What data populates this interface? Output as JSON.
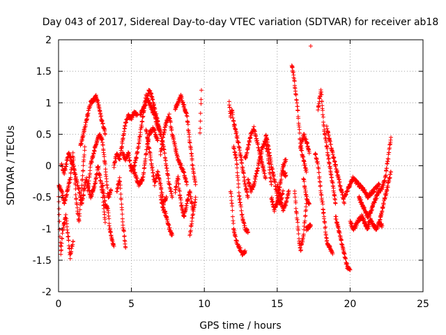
{
  "chart_data": {
    "type": "scatter",
    "title": "Day 043 of 2017, Sidereal Day-to-day VTEC variation (SDTVAR) for receiver ab18",
    "xlabel": "GPS time / hours",
    "ylabel": "SDTVAR / TECUs",
    "xlim": [
      0,
      25
    ],
    "ylim": [
      -2,
      2
    ],
    "xticks": [
      "0",
      "5",
      "10",
      "15",
      "20",
      "25"
    ],
    "yticks": [
      "-2",
      "-1.5",
      "-1",
      "-0.5",
      "0",
      "0.5",
      "1",
      "1.5",
      "2"
    ],
    "grid": true,
    "marker": "+",
    "color": "#ff0000",
    "series": [
      {
        "name": "SDTVAR",
        "segments": [
          {
            "x": [
              0.0,
              0.15,
              0.3,
              0.5,
              0.7,
              0.8,
              0.9,
              1.0
            ],
            "y": [
              -0.5,
              -1.4,
              -1.0,
              -0.8,
              -1.2,
              -1.45,
              -1.3,
              -1.2
            ]
          },
          {
            "x": [
              0.0,
              0.2,
              0.4,
              0.6,
              0.8,
              1.0,
              1.2,
              1.4,
              1.6,
              1.8
            ],
            "y": [
              -0.3,
              -0.4,
              -0.6,
              -0.4,
              -0.2,
              0.2,
              -0.5,
              -0.9,
              -0.3,
              0.3
            ]
          },
          {
            "x": [
              0.2,
              0.4,
              0.7,
              1.0,
              1.3,
              1.6,
              1.9,
              2.2,
              2.5,
              2.7,
              3.0,
              3.2
            ],
            "y": [
              0.0,
              -0.1,
              0.2,
              0.0,
              -0.3,
              -0.6,
              -0.2,
              -0.5,
              -0.3,
              0.0,
              -0.4,
              -0.9
            ]
          },
          {
            "x": [
              1.5,
              1.8,
              2.0,
              2.2,
              2.4,
              2.6,
              2.8,
              3.0,
              3.2
            ],
            "y": [
              0.3,
              0.6,
              0.8,
              1.0,
              1.05,
              1.1,
              0.9,
              0.7,
              0.5
            ]
          },
          {
            "x": [
              2.0,
              2.2,
              2.5,
              2.8,
              3.0,
              3.2,
              3.4,
              3.6
            ],
            "y": [
              -0.4,
              0.0,
              0.3,
              0.5,
              0.4,
              0.0,
              -0.5,
              -0.4
            ]
          },
          {
            "x": [
              3.0,
              3.2,
              3.4,
              3.5,
              3.6,
              3.7,
              3.8
            ],
            "y": [
              -0.3,
              -0.6,
              -0.7,
              -1.0,
              -1.1,
              -1.2,
              -1.28
            ]
          },
          {
            "x": [
              3.8,
              4.0,
              4.2,
              4.4,
              4.6,
              4.8,
              5.0,
              5.2,
              5.4
            ],
            "y": [
              0.0,
              0.2,
              0.1,
              0.4,
              0.7,
              0.8,
              0.75,
              0.85,
              0.8
            ]
          },
          {
            "x": [
              4.0,
              4.2,
              4.4,
              4.6
            ],
            "y": [
              -0.4,
              -0.2,
              -0.9,
              -1.3
            ]
          },
          {
            "x": [
              4.4,
              4.6,
              4.8,
              5.0,
              5.2,
              5.4,
              5.6,
              5.8,
              6.0,
              6.2,
              6.4,
              6.6,
              6.8
            ],
            "y": [
              0.2,
              0.1,
              0.2,
              -0.1,
              0.0,
              0.2,
              0.5,
              0.8,
              1.1,
              1.0,
              0.9,
              0.8,
              0.6
            ]
          },
          {
            "x": [
              5.0,
              5.2,
              5.5,
              5.8,
              6.0,
              6.2,
              6.5,
              6.8
            ],
            "y": [
              0.0,
              -0.1,
              -0.3,
              -0.2,
              0.2,
              0.5,
              0.6,
              0.4
            ]
          },
          {
            "x": [
              5.6,
              5.8,
              6.0,
              6.2,
              6.4,
              6.6,
              6.8,
              7.0
            ],
            "y": [
              0.8,
              0.9,
              1.0,
              1.2,
              1.1,
              0.9,
              0.7,
              0.5
            ]
          },
          {
            "x": [
              6.0,
              6.2,
              6.4,
              6.6,
              6.8,
              7.0,
              7.2,
              7.4
            ],
            "y": [
              0.6,
              0.3,
              0.0,
              -0.3,
              -0.1,
              -0.3,
              -0.6,
              -0.5
            ]
          },
          {
            "x": [
              6.8,
              7.0,
              7.2,
              7.4,
              7.6,
              7.8
            ],
            "y": [
              0.7,
              0.5,
              0.3,
              0.0,
              -0.3,
              -0.5
            ]
          },
          {
            "x": [
              7.0,
              7.2,
              7.4,
              7.6,
              7.8
            ],
            "y": [
              -0.5,
              -0.7,
              -0.8,
              -1.0,
              -1.1
            ]
          },
          {
            "x": [
              7.0,
              7.2,
              7.4,
              7.6,
              7.8,
              8.0,
              8.2,
              8.4,
              8.6,
              8.8
            ],
            "y": [
              0.2,
              0.5,
              0.7,
              0.8,
              0.5,
              0.3,
              0.1,
              0.0,
              -0.1,
              -0.3
            ]
          },
          {
            "x": [
              8.0,
              8.2,
              8.4,
              8.6,
              8.8,
              9.0,
              9.2,
              9.4
            ],
            "y": [
              0.9,
              1.0,
              1.1,
              0.95,
              0.8,
              0.4,
              0.0,
              -0.3
            ]
          },
          {
            "x": [
              8.0,
              8.2,
              8.4,
              8.6,
              8.8,
              9.0,
              9.2
            ],
            "y": [
              -0.4,
              -0.2,
              -0.6,
              -0.8,
              -0.6,
              -0.4,
              -0.7
            ]
          },
          {
            "x": [
              9.0,
              9.2,
              9.4
            ],
            "y": [
              -1.1,
              -0.8,
              -0.5
            ]
          },
          {
            "x": [
              9.7,
              9.8
            ],
            "y": [
              0.5,
              1.2
            ]
          },
          {
            "x": [
              11.7,
              11.8,
              11.9,
              12.0,
              12.2,
              12.4,
              12.6,
              12.8,
              13.0
            ],
            "y": [
              1.0,
              0.8,
              0.9,
              0.7,
              0.5,
              0.3,
              0.0,
              -0.3,
              -0.5
            ]
          },
          {
            "x": [
              11.8,
              11.9,
              12.0,
              12.2,
              12.4,
              12.6,
              12.8
            ],
            "y": [
              -0.4,
              -0.6,
              -1.0,
              -1.2,
              -1.3,
              -1.4,
              -1.35
            ]
          },
          {
            "x": [
              12.0,
              12.2,
              12.4,
              12.6,
              12.8,
              13.0
            ],
            "y": [
              0.3,
              0.1,
              -0.5,
              -0.8,
              -1.0,
              -1.05
            ]
          },
          {
            "x": [
              12.8,
              13.0,
              13.2,
              13.4,
              13.6,
              13.8,
              14.0,
              14.2
            ],
            "y": [
              0.1,
              0.3,
              0.5,
              0.6,
              0.4,
              0.2,
              0.0,
              -0.2
            ]
          },
          {
            "x": [
              13.0,
              13.2,
              13.4,
              13.6,
              13.8,
              14.0,
              14.2,
              14.4,
              14.6
            ],
            "y": [
              -0.2,
              -0.4,
              -0.3,
              -0.1,
              0.1,
              0.3,
              0.4,
              0.1,
              -0.3
            ]
          },
          {
            "x": [
              14.2,
              14.4,
              14.6,
              14.8,
              15.0,
              15.2,
              15.4
            ],
            "y": [
              0.5,
              0.3,
              0.0,
              -0.2,
              -0.5,
              -0.6,
              -0.4
            ]
          },
          {
            "x": [
              14.6,
              14.8,
              15.0,
              15.2,
              15.4,
              15.6
            ],
            "y": [
              -0.5,
              -0.7,
              -0.6,
              -0.3,
              0.0,
              0.1
            ]
          },
          {
            "x": [
              15.0,
              15.2,
              15.4,
              15.6,
              15.8
            ],
            "y": [
              -0.3,
              -0.5,
              -0.7,
              -0.6,
              -0.4
            ]
          },
          {
            "x": [
              15.4,
              15.6
            ],
            "y": [
              -0.1,
              -0.15
            ]
          },
          {
            "x": [
              16.0,
              16.1,
              16.2,
              16.3,
              16.4,
              16.5,
              16.6,
              16.8,
              17.0
            ],
            "y": [
              1.6,
              1.5,
              1.3,
              1.1,
              0.9,
              0.6,
              0.3,
              0.1,
              -0.1
            ]
          },
          {
            "x": [
              16.2,
              16.3,
              16.4,
              16.5,
              16.6,
              16.8,
              17.0
            ],
            "y": [
              -0.4,
              -0.7,
              -0.9,
              -1.2,
              -1.35,
              -1.1,
              -0.6
            ]
          },
          {
            "x": [
              16.6,
              16.8,
              17.0,
              17.2
            ],
            "y": [
              0.3,
              0.5,
              0.4,
              0.2
            ]
          },
          {
            "x": [
              16.8,
              17.0,
              17.2
            ],
            "y": [
              -0.2,
              -0.5,
              -0.6
            ]
          },
          {
            "x": [
              17.0,
              17.3
            ],
            "y": [
              -1.0,
              -0.95
            ]
          },
          {
            "x": [
              17.3
            ],
            "y": [
              1.9
            ]
          },
          {
            "x": [
              17.6,
              17.8,
              18.0,
              18.2,
              18.4,
              18.6,
              18.8
            ],
            "y": [
              0.2,
              0.0,
              -0.4,
              -0.8,
              -1.2,
              -1.3,
              -1.4
            ]
          },
          {
            "x": [
              17.8,
              18.0,
              18.2,
              18.4,
              18.6,
              18.8,
              19.0
            ],
            "y": [
              0.9,
              1.2,
              0.6,
              0.3,
              0.0,
              -0.3,
              -0.6
            ]
          },
          {
            "x": [
              18.4,
              18.6,
              18.8,
              19.0,
              19.2,
              19.4,
              19.6
            ],
            "y": [
              0.6,
              0.4,
              0.2,
              0.0,
              -0.2,
              -0.4,
              -0.6
            ]
          },
          {
            "x": [
              19.0,
              19.2,
              19.4,
              19.6,
              19.8,
              20.0
            ],
            "y": [
              -0.8,
              -1.0,
              -1.2,
              -1.4,
              -1.6,
              -1.65
            ]
          },
          {
            "x": [
              19.6,
              19.8,
              20.0,
              20.2,
              20.4,
              20.6,
              20.8,
              21.0,
              21.2,
              21.4,
              21.6,
              21.8,
              22.0
            ],
            "y": [
              -0.5,
              -0.4,
              -0.3,
              -0.2,
              -0.25,
              -0.3,
              -0.35,
              -0.4,
              -0.5,
              -0.45,
              -0.4,
              -0.35,
              -0.3
            ]
          },
          {
            "x": [
              20.0,
              20.2,
              20.4,
              20.6,
              20.8,
              21.0,
              21.2,
              21.4,
              21.6,
              21.8,
              22.0,
              22.2
            ],
            "y": [
              -0.9,
              -1.0,
              -0.95,
              -0.85,
              -0.8,
              -0.9,
              -1.0,
              -0.85,
              -0.95,
              -1.0,
              -0.9,
              -0.95
            ]
          },
          {
            "x": [
              20.6,
              20.8,
              21.0,
              21.2,
              21.4,
              21.6,
              21.8,
              22.0,
              22.2,
              22.4,
              22.6,
              22.8
            ],
            "y": [
              -0.5,
              -0.6,
              -0.7,
              -0.8,
              -0.75,
              -0.6,
              -0.5,
              -0.4,
              -0.35,
              -0.2,
              0.1,
              0.45
            ]
          },
          {
            "x": [
              22.0,
              22.2,
              22.4,
              22.6,
              22.8
            ],
            "y": [
              -0.9,
              -0.7,
              -0.5,
              -0.3,
              -0.1
            ]
          }
        ]
      }
    ]
  }
}
